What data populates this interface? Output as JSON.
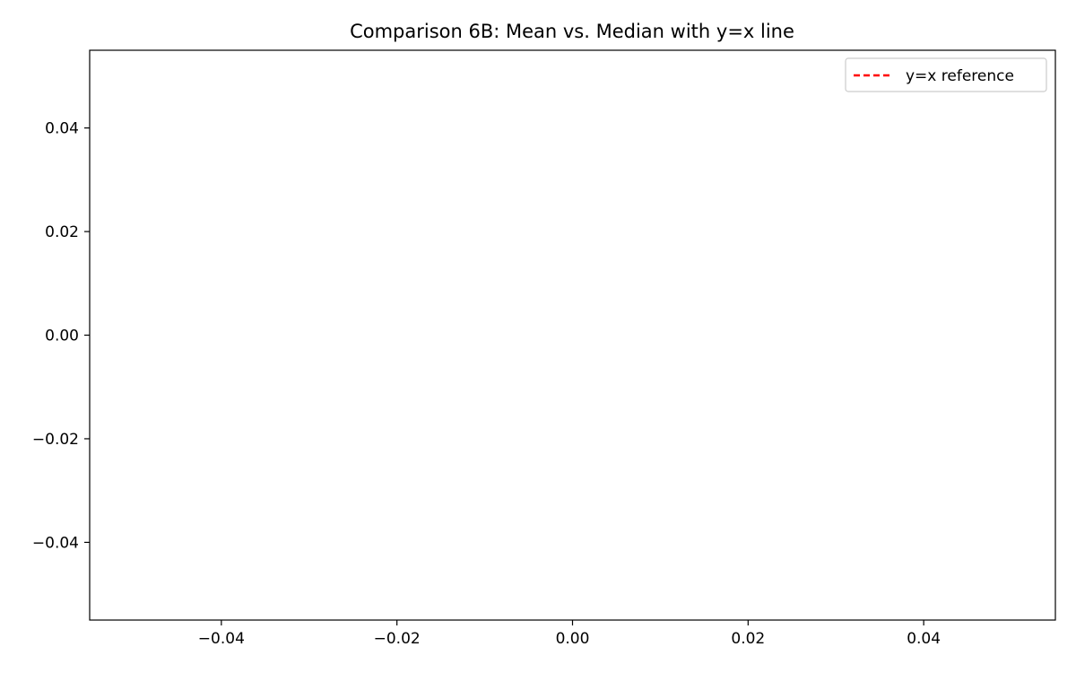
{
  "chart_data": {
    "type": "line",
    "title": "Comparison 6B: Mean vs. Median with y=x line",
    "xlabel": "",
    "ylabel": "",
    "xlim": [
      -0.055,
      0.055
    ],
    "ylim": [
      -0.055,
      0.055
    ],
    "x_ticks": [
      -0.04,
      -0.02,
      0.0,
      0.02,
      0.04
    ],
    "x_tick_labels": [
      "−0.04",
      "−0.02",
      "0.00",
      "0.02",
      "0.04"
    ],
    "y_ticks": [
      0.04,
      0.02,
      0.0,
      -0.02,
      -0.04
    ],
    "y_tick_labels": [
      "0.04",
      "0.02",
      "0.00",
      "−0.02",
      "−0.04"
    ],
    "grid": false,
    "legend_position": "top-right",
    "series": [
      {
        "name": "y=x reference",
        "style": "dashed",
        "color": "#ff0000",
        "x": [],
        "y": []
      }
    ]
  }
}
